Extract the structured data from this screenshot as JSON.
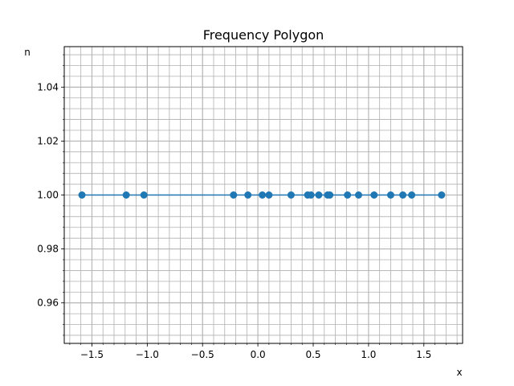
{
  "chart_data": {
    "type": "line",
    "title": "Frequency Polygon",
    "xlabel": "x",
    "ylabel": "n",
    "xlim": [
      -1.75,
      1.85
    ],
    "ylim": [
      0.945,
      1.055
    ],
    "grid": true,
    "minor_grid": true,
    "x_major_ticks": [
      -1.5,
      -1.0,
      -0.5,
      0.0,
      0.5,
      1.0,
      1.5
    ],
    "x_tick_labels": [
      "−1.5",
      "−1.0",
      "−0.5",
      "0.0",
      "0.5",
      "1.0",
      "1.5"
    ],
    "x_minor_step": 0.1,
    "y_major_ticks": [
      0.96,
      0.98,
      1.0,
      1.02,
      1.04
    ],
    "y_tick_labels": [
      "0.96",
      "0.98",
      "1.00",
      "1.02",
      "1.04"
    ],
    "y_minor_step": 0.004,
    "series": [
      {
        "color": "#1f77b4",
        "marker": "circle",
        "x": [
          -1.59,
          -1.19,
          -1.03,
          -0.22,
          -0.09,
          0.04,
          0.1,
          0.3,
          0.45,
          0.48,
          0.55,
          0.63,
          0.65,
          0.81,
          0.91,
          1.05,
          1.2,
          1.31,
          1.39,
          1.66
        ],
        "y": [
          1,
          1,
          1,
          1,
          1,
          1,
          1,
          1,
          1,
          1,
          1,
          1,
          1,
          1,
          1,
          1,
          1,
          1,
          1,
          1
        ]
      }
    ],
    "colors": {
      "grid": "#b0b0b0",
      "axes": "#000000",
      "line": "#1f77b4"
    }
  }
}
